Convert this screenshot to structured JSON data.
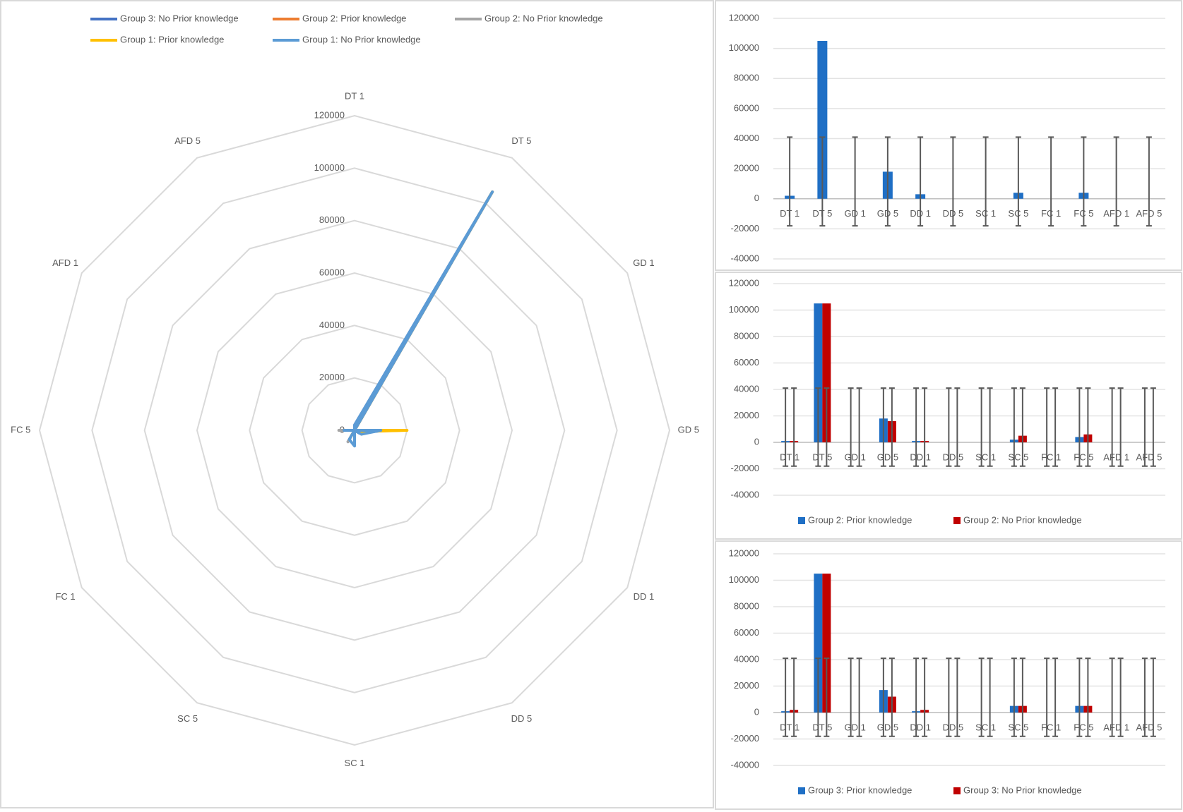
{
  "chart_data": [
    {
      "type": "radar",
      "categories": [
        "DT 1",
        "DT 5",
        "GD 1",
        "GD 5",
        "DD 1",
        "DD 5",
        "SC 1",
        "SC 5",
        "FC 1",
        "FC 5",
        "AFD 1",
        "AFD 5"
      ],
      "ylim": [
        0,
        120000
      ],
      "yticks": [
        0,
        20000,
        40000,
        60000,
        80000,
        100000,
        120000
      ],
      "grid": true,
      "legend": "top",
      "series": [
        {
          "name": "Group 3: No Prior knowledge",
          "color": "#4472c4",
          "values": [
            2000,
            105000,
            0,
            12000,
            2000,
            0,
            0,
            5000,
            0,
            5000,
            0,
            0
          ]
        },
        {
          "name": "Group 2: Prior knowledge",
          "color": "#ed7d31",
          "values": [
            1000,
            105000,
            0,
            18000,
            1000,
            0,
            0,
            2000,
            0,
            4000,
            0,
            0
          ]
        },
        {
          "name": "Group 2: No Prior knowledge",
          "color": "#a5a5a5",
          "values": [
            1000,
            105000,
            0,
            16000,
            1000,
            0,
            0,
            5000,
            0,
            6000,
            0,
            0
          ]
        },
        {
          "name": "Group 1: Prior knowledge",
          "color": "#ffc000",
          "values": [
            1000,
            105000,
            0,
            20000,
            1000,
            0,
            0,
            3000,
            0,
            3000,
            0,
            0
          ]
        },
        {
          "name": "Group 1: No Prior knowledge",
          "color": "#5b9bd5",
          "values": [
            2000,
            105000,
            0,
            10000,
            3000,
            0,
            6000,
            4000,
            0,
            4000,
            0,
            0
          ]
        }
      ]
    },
    {
      "type": "bar",
      "categories": [
        "DT 1",
        "DT 5",
        "GD 1",
        "GD 5",
        "DD 1",
        "DD 5",
        "SC 1",
        "SC 5",
        "FC 1",
        "FC 5",
        "AFD 1",
        "AFD 5"
      ],
      "ylim": [
        -40000,
        120000
      ],
      "yticks": [
        -40000,
        -20000,
        0,
        20000,
        40000,
        60000,
        80000,
        100000,
        120000
      ],
      "grid": true,
      "error_bar": {
        "low": -18000,
        "high": 41000
      },
      "series": [
        {
          "color": "#1f6fc5",
          "values": [
            2000,
            105000,
            0,
            18000,
            3000,
            0,
            0,
            4000,
            0,
            4000,
            0,
            0
          ]
        }
      ]
    },
    {
      "type": "bar",
      "categories": [
        "DT 1",
        "DT 5",
        "GD 1",
        "GD 5",
        "DD 1",
        "DD 5",
        "SC 1",
        "SC 5",
        "FC 1",
        "FC 5",
        "AFD 1",
        "AFD 5"
      ],
      "ylim": [
        -40000,
        120000
      ],
      "yticks": [
        -40000,
        -20000,
        0,
        20000,
        40000,
        60000,
        80000,
        100000,
        120000
      ],
      "grid": true,
      "legend": "bottom",
      "error_bar": {
        "low": -18000,
        "high": 41000
      },
      "series": [
        {
          "name": "Group 2: Prior knowledge",
          "color": "#1f6fc5",
          "values": [
            1000,
            105000,
            0,
            18000,
            1000,
            0,
            0,
            2000,
            0,
            4000,
            0,
            0
          ]
        },
        {
          "name": "Group 2: No Prior knowledge",
          "color": "#c00000",
          "values": [
            1000,
            105000,
            0,
            16000,
            1000,
            0,
            0,
            5000,
            0,
            6000,
            0,
            0
          ]
        }
      ]
    },
    {
      "type": "bar",
      "categories": [
        "DT 1",
        "DT 5",
        "GD 1",
        "GD 5",
        "DD 1",
        "DD 5",
        "SC 1",
        "SC 5",
        "FC 1",
        "FC 5",
        "AFD 1",
        "AFD 5"
      ],
      "ylim": [
        -40000,
        120000
      ],
      "yticks": [
        -40000,
        -20000,
        0,
        20000,
        40000,
        60000,
        80000,
        100000,
        120000
      ],
      "grid": true,
      "legend": "bottom",
      "error_bar": {
        "low": -18000,
        "high": 41000
      },
      "series": [
        {
          "name": "Group 3: Prior knowledge",
          "color": "#1f6fc5",
          "values": [
            1000,
            105000,
            0,
            17000,
            1000,
            0,
            0,
            5000,
            0,
            5000,
            0,
            0
          ]
        },
        {
          "name": "Group 3: No Prior knowledge",
          "color": "#c00000",
          "values": [
            2000,
            105000,
            0,
            12000,
            2000,
            0,
            0,
            5000,
            0,
            5000,
            0,
            0
          ]
        }
      ]
    }
  ]
}
